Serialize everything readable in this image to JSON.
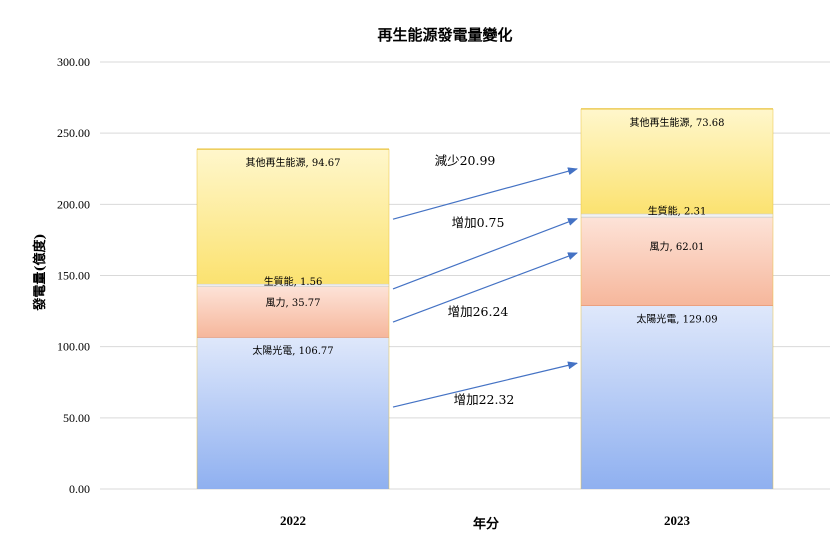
{
  "chart_data": {
    "type": "bar",
    "stacked": true,
    "title": "再生能源發電量變化",
    "xlabel": "年分",
    "ylabel": "發電量(億度)",
    "categories": [
      "2022",
      "2023"
    ],
    "ylim": [
      0,
      300
    ],
    "yticks": [
      "0.00",
      "50.00",
      "100.00",
      "150.00",
      "200.00",
      "250.00",
      "300.00"
    ],
    "grid": true,
    "legend": "none",
    "series": [
      {
        "name": "太陽光電",
        "values": [
          106.77,
          129.09
        ],
        "labels": [
          "太陽光電, 106.77",
          "太陽光電, 129.09"
        ],
        "color_top": "#dfe8fb",
        "color_bottom": "#8fb0f0",
        "border": "#e8875a"
      },
      {
        "name": "風力",
        "values": [
          35.77,
          62.01
        ],
        "labels": [
          "風力, 35.77",
          "風力, 62.01"
        ],
        "color_top": "#fde3d8",
        "color_bottom": "#f6b79c",
        "border": "#cfcfcf"
      },
      {
        "name": "生質能",
        "values": [
          1.56,
          2.31
        ],
        "labels": [
          "生質能, 1.56",
          "生質能, 2.31"
        ],
        "color_top": "#ffffff",
        "color_bottom": "#e6e6e6",
        "border": "#cfcfcf"
      },
      {
        "name": "其他再生能源",
        "values": [
          94.67,
          73.68
        ],
        "labels": [
          "其他再生能源, 94.67",
          "其他再生能源, 73.68"
        ],
        "color_top": "#fff7cc",
        "color_bottom": "#fbe270",
        "border": "#e9c23a"
      }
    ],
    "annotations": [
      {
        "text": "減少20.99",
        "series": 3
      },
      {
        "text": "增加0.75",
        "series": 2
      },
      {
        "text": "增加26.24",
        "series": 1
      },
      {
        "text": "增加22.32",
        "series": 0
      }
    ],
    "colors": {
      "grid": "#d9d9d9",
      "arrow": "#4472c4"
    }
  }
}
